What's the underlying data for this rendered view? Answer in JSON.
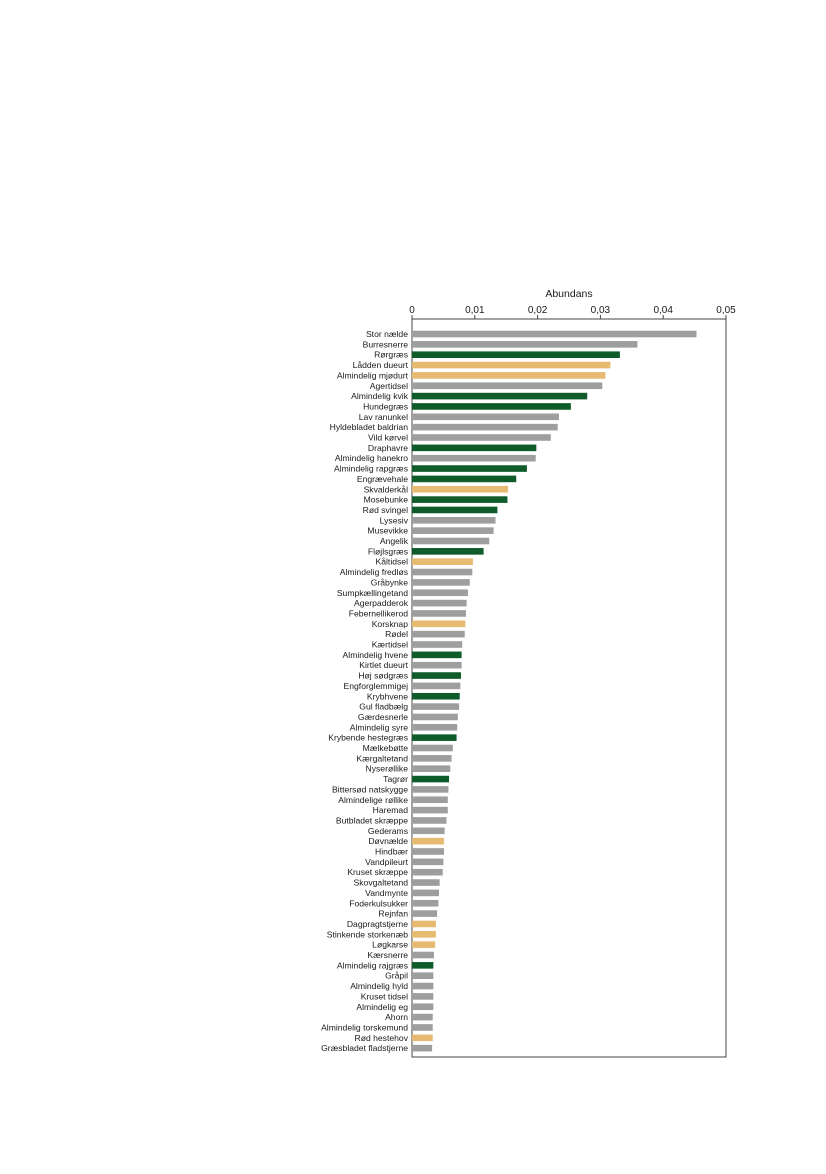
{
  "colors": {
    "green": "#0f5c2a",
    "grey": "#9e9e9e",
    "orange": "#e7ba72",
    "axis": "#444444"
  },
  "chart_data": {
    "type": "bar",
    "orientation": "horizontal",
    "title": "",
    "xlabel": "Abundans",
    "ylabel": "",
    "xlim": [
      0,
      0.05
    ],
    "xticks": [
      "0",
      "0,01",
      "0,02",
      "0,03",
      "0,04",
      "0,05"
    ],
    "xtick_values": [
      0,
      0.01,
      0.02,
      0.03,
      0.04,
      0.05
    ],
    "grid": false,
    "legend": "none",
    "categories": [
      "Stor nælde",
      "Burresnerre",
      "Rørgræs",
      "Lådden dueurt",
      "Almindelig mjødurt",
      "Agertidsel",
      "Almindelig kvik",
      "Hundegræs",
      "Lav ranunkel",
      "Hyldebladet baldrian",
      "Vild kørvel",
      "Draphavre",
      "Almindelig hanekro",
      "Almindelig rapgræs",
      "Engrævehale",
      "Skvalderkål",
      "Mosebunke",
      "Rød svingel",
      "Lysesiv",
      "Musevikke",
      "Angelik",
      "Fløjlsgræs",
      "Kåltidsel",
      "Almindelig fredløs",
      "Gråbynke",
      "Sumpkællingetand",
      "Agerpadderok",
      "Febernellikerod",
      "Korsknap",
      "Rødel",
      "Kærtidsel",
      "Almindelig hvene",
      "Kirtlet dueurt",
      "Høj sødgræs",
      "Engforglemmigej",
      "Krybhvene",
      "Gul fladbælg",
      "Gærdesnerle",
      "Almindelig syre",
      "Krybende hestegræs",
      "Mælkebøtte",
      "Kærgaltetand",
      "Nyserøllike",
      "Tagrør",
      "Bittersød natskygge",
      "Almindelige røllike",
      "Haremad",
      "Butbladet skræppe",
      "Gederams",
      "Døvnælde",
      "Hindbær",
      "Vandpileurt",
      "Kruset skræppe",
      "Skovgaltetand",
      "Vandmynte",
      "Foderkulsukker",
      "Rejnfan",
      "Dagpragtstjerne",
      "Stinkende storkenæb",
      "Løgkarse",
      "Kærsnerre",
      "Almindelig rajgræs",
      "Gråpil",
      "Almindelig hyld",
      "Kruset tidsel",
      "Almindelig eg",
      "Ahorn",
      "Almindelig torskemund",
      "Rød hestehov",
      "Græsbladet fladstjerne"
    ],
    "values": [
      0.0453,
      0.0359,
      0.0331,
      0.0316,
      0.0308,
      0.0303,
      0.0279,
      0.0253,
      0.0234,
      0.0232,
      0.0221,
      0.0198,
      0.0197,
      0.0183,
      0.0166,
      0.0153,
      0.0152,
      0.0136,
      0.0133,
      0.013,
      0.0123,
      0.0114,
      0.0097,
      0.0096,
      0.0092,
      0.0089,
      0.0087,
      0.0086,
      0.0085,
      0.0084,
      0.008,
      0.0079,
      0.0079,
      0.0078,
      0.0077,
      0.0076,
      0.0075,
      0.0073,
      0.0072,
      0.0071,
      0.0065,
      0.0063,
      0.0061,
      0.0059,
      0.0058,
      0.0057,
      0.0057,
      0.0055,
      0.0052,
      0.0051,
      0.0051,
      0.005,
      0.0049,
      0.0044,
      0.0043,
      0.0042,
      0.004,
      0.0038,
      0.0038,
      0.0037,
      0.0035,
      0.0034,
      0.0034,
      0.0034,
      0.0034,
      0.0034,
      0.0033,
      0.0033,
      0.0033,
      0.0032
    ],
    "bar_colors": [
      "grey",
      "grey",
      "green",
      "orange",
      "orange",
      "grey",
      "green",
      "green",
      "grey",
      "grey",
      "grey",
      "green",
      "grey",
      "green",
      "green",
      "orange",
      "green",
      "green",
      "grey",
      "grey",
      "grey",
      "green",
      "orange",
      "grey",
      "grey",
      "grey",
      "grey",
      "grey",
      "orange",
      "grey",
      "grey",
      "green",
      "grey",
      "green",
      "grey",
      "green",
      "grey",
      "grey",
      "grey",
      "green",
      "grey",
      "grey",
      "grey",
      "green",
      "grey",
      "grey",
      "grey",
      "grey",
      "grey",
      "orange",
      "grey",
      "grey",
      "grey",
      "grey",
      "grey",
      "grey",
      "grey",
      "orange",
      "orange",
      "orange",
      "grey",
      "green",
      "grey",
      "grey",
      "grey",
      "grey",
      "grey",
      "grey",
      "orange",
      "grey"
    ]
  }
}
